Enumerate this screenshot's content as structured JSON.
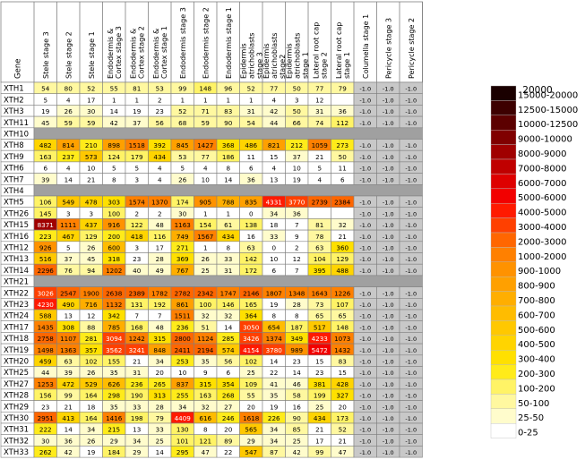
{
  "chart_data": {
    "type": "heatmap",
    "gene_header": "Gene",
    "columns": [
      "Stele stage 3",
      "Stele stage 2",
      "Stele stage 1",
      "Endodermis & Cortex stage 3",
      "Endodermis & Cortex stage 2",
      "Endodermis & Cortex stage 1",
      "Endodermis stage 3",
      "Endodermis stage 2",
      "Endodermis stage 1",
      "Epidermis atrichoblasts stage 3",
      "Epidermis atrichoblasts stage2",
      "Epidermis atrichoblasts stage 1",
      "Lateral root cap stage 2",
      "Lateral root cap stage 1",
      "Columella stage 1",
      "Pericycle stage 3",
      "Pericycle stage 2"
    ],
    "rows": [
      {
        "gene": "XTH1",
        "values": [
          "54",
          "80",
          "52",
          "55",
          "81",
          "53",
          "99",
          "148",
          "96",
          "52",
          "77",
          "50",
          "77",
          "79",
          "-1.0",
          "-1.0",
          "-1.0"
        ]
      },
      {
        "gene": "XTH2",
        "values": [
          "5",
          "4",
          "17",
          "1",
          "1",
          "2",
          "1",
          "1",
          "1",
          "1",
          "4",
          "3",
          "12",
          "",
          "-1.0",
          "-1.0",
          "-1.0"
        ]
      },
      {
        "gene": "XTH3",
        "values": [
          "19",
          "26",
          "30",
          "14",
          "19",
          "23",
          "52",
          "71",
          "83",
          "31",
          "42",
          "50",
          "31",
          "36",
          "-1.0",
          "-1.0",
          "-1.0"
        ]
      },
      {
        "gene": "XTH11",
        "values": [
          "45",
          "59",
          "59",
          "42",
          "37",
          "56",
          "68",
          "59",
          "90",
          "54",
          "44",
          "66",
          "74",
          "112",
          "-1.0",
          "-1.0",
          "-1.0"
        ]
      },
      {
        "gene": "XTH10",
        "values": []
      },
      {
        "gene": "XTH8",
        "values": [
          "482",
          "814",
          "210",
          "898",
          "1518",
          "392",
          "845",
          "1427",
          "368",
          "486",
          "821",
          "212",
          "1059",
          "273",
          "-1.0",
          "-1.0",
          "-1.0"
        ]
      },
      {
        "gene": "XTH9",
        "values": [
          "163",
          "237",
          "573",
          "124",
          "179",
          "434",
          "53",
          "77",
          "186",
          "11",
          "15",
          "37",
          "21",
          "50",
          "-1.0",
          "-1.0",
          "-1.0"
        ]
      },
      {
        "gene": "XTH6",
        "values": [
          "6",
          "4",
          "10",
          "5",
          "5",
          "4",
          "5",
          "4",
          "8",
          "6",
          "4",
          "10",
          "5",
          "11",
          "-1.0",
          "-1.0",
          "-1.0"
        ]
      },
      {
        "gene": "XTH7",
        "values": [
          "39",
          "14",
          "21",
          "8",
          "3",
          "4",
          "26",
          "10",
          "14",
          "36",
          "13",
          "19",
          "4",
          "6",
          "-1.0",
          "-1.0",
          "-1.0"
        ]
      },
      {
        "gene": "XTH4",
        "values": []
      },
      {
        "gene": "XTH5",
        "values": [
          "106",
          "549",
          "478",
          "303",
          "1574",
          "1370",
          "174",
          "905",
          "788",
          "835",
          "4331",
          "3770",
          "2739",
          "2384",
          "-1.0",
          "-1.0",
          "-1.0"
        ]
      },
      {
        "gene": "XTH26",
        "values": [
          "145",
          "3",
          "3",
          "100",
          "2",
          "2",
          "30",
          "1",
          "1",
          "0",
          "34",
          "36",
          "",
          "",
          "-1.0",
          "-1.0",
          "-1.0"
        ]
      },
      {
        "gene": "XTH15",
        "values": [
          "8371",
          "1111",
          "437",
          "916",
          "122",
          "48",
          "1163",
          "154",
          "61",
          "138",
          "18",
          "7",
          "81",
          "32",
          "-1.0",
          "-1.0",
          "-1.0"
        ]
      },
      {
        "gene": "XTH16",
        "values": [
          "223",
          "467",
          "129",
          "200",
          "418",
          "116",
          "749",
          "1567",
          "434",
          "16",
          "33",
          "9",
          "78",
          "21",
          "-1.0",
          "-1.0",
          "-1.0"
        ]
      },
      {
        "gene": "XTH12",
        "values": [
          "926",
          "5",
          "26",
          "600",
          "3",
          "17",
          "271",
          "1",
          "8",
          "63",
          "0",
          "2",
          "63",
          "360",
          "-1.0",
          "-1.0",
          "-1.0"
        ]
      },
      {
        "gene": "XTH13",
        "values": [
          "516",
          "37",
          "45",
          "318",
          "23",
          "28",
          "369",
          "26",
          "33",
          "142",
          "10",
          "12",
          "104",
          "129",
          "-1.0",
          "-1.0",
          "-1.0"
        ]
      },
      {
        "gene": "XTH14",
        "values": [
          "2296",
          "76",
          "94",
          "1202",
          "40",
          "49",
          "767",
          "25",
          "31",
          "172",
          "6",
          "7",
          "395",
          "488",
          "-1.0",
          "-1.0",
          "-1.0"
        ]
      },
      {
        "gene": "XTH21",
        "values": []
      },
      {
        "gene": "XTH22",
        "values": [
          "3026",
          "2547",
          "1900",
          "2638",
          "2389",
          "1782",
          "2782",
          "2342",
          "1747",
          "2146",
          "1807",
          "1348",
          "1643",
          "1226",
          "-1.0",
          "-1.0",
          "-1.0"
        ]
      },
      {
        "gene": "XTH23",
        "values": [
          "4230",
          "490",
          "716",
          "1132",
          "131",
          "192",
          "861",
          "100",
          "146",
          "165",
          "19",
          "28",
          "73",
          "107",
          "-1.0",
          "-1.0",
          "-1.0"
        ]
      },
      {
        "gene": "XTH24",
        "values": [
          "588",
          "13",
          "12",
          "342",
          "7",
          "7",
          "1511",
          "32",
          "32",
          "364",
          "8",
          "8",
          "65",
          "65",
          "-1.0",
          "-1.0",
          "-1.0"
        ]
      },
      {
        "gene": "XTH17",
        "values": [
          "1435",
          "308",
          "88",
          "785",
          "168",
          "48",
          "236",
          "51",
          "14",
          "3050",
          "654",
          "187",
          "517",
          "148",
          "-1.0",
          "-1.0",
          "-1.0"
        ]
      },
      {
        "gene": "XTH18",
        "values": [
          "2758",
          "1107",
          "281",
          "3094",
          "1242",
          "315",
          "2800",
          "1124",
          "285",
          "3426",
          "1374",
          "349",
          "4233",
          "1073",
          "-1.0",
          "-1.0",
          "-1.0"
        ]
      },
      {
        "gene": "XTH19",
        "values": [
          "1498",
          "1363",
          "357",
          "3562",
          "3241",
          "848",
          "2411",
          "2194",
          "574",
          "4154",
          "3780",
          "989",
          "5472",
          "1432",
          "-1.0",
          "-1.0",
          "-1.0"
        ]
      },
      {
        "gene": "XTH20",
        "values": [
          "459",
          "63",
          "102",
          "155",
          "21",
          "34",
          "253",
          "35",
          "56",
          "102",
          "14",
          "23",
          "15",
          "83",
          "-1.0",
          "-1.0",
          "-1.0"
        ]
      },
      {
        "gene": "XTH25",
        "values": [
          "44",
          "39",
          "26",
          "35",
          "31",
          "20",
          "10",
          "9",
          "6",
          "25",
          "22",
          "14",
          "23",
          "15",
          "-1.0",
          "-1.0",
          "-1.0"
        ]
      },
      {
        "gene": "XTH27",
        "values": [
          "1253",
          "472",
          "529",
          "626",
          "236",
          "265",
          "837",
          "315",
          "354",
          "109",
          "41",
          "46",
          "381",
          "428",
          "-1.0",
          "-1.0",
          "-1.0"
        ]
      },
      {
        "gene": "XTH28",
        "values": [
          "156",
          "99",
          "164",
          "298",
          "190",
          "313",
          "255",
          "163",
          "268",
          "55",
          "35",
          "58",
          "199",
          "327",
          "-1.0",
          "-1.0",
          "-1.0"
        ]
      },
      {
        "gene": "XTH29",
        "values": [
          "23",
          "21",
          "18",
          "35",
          "33",
          "28",
          "34",
          "32",
          "27",
          "20",
          "19",
          "16",
          "25",
          "20",
          "-1.0",
          "-1.0",
          "-1.0"
        ]
      },
      {
        "gene": "XTH30",
        "values": [
          "2951",
          "413",
          "164",
          "1416",
          "198",
          "79",
          "4409",
          "616",
          "246",
          "1618",
          "226",
          "90",
          "434",
          "173",
          "-1.0",
          "-1.0",
          "-1.0"
        ]
      },
      {
        "gene": "XTH31",
        "values": [
          "222",
          "14",
          "34",
          "215",
          "13",
          "33",
          "130",
          "8",
          "20",
          "565",
          "34",
          "85",
          "21",
          "52",
          "-1.0",
          "-1.0",
          "-1.0"
        ]
      },
      {
        "gene": "XTH32",
        "values": [
          "30",
          "36",
          "26",
          "29",
          "34",
          "25",
          "101",
          "121",
          "89",
          "29",
          "34",
          "25",
          "17",
          "21",
          "-1.0",
          "-1.0",
          "-1.0"
        ]
      },
      {
        "gene": "XTH33",
        "values": [
          "262",
          "42",
          "19",
          "184",
          "29",
          "14",
          "295",
          "47",
          "22",
          "547",
          "87",
          "42",
          "99",
          "47",
          "-1.0",
          "-1.0",
          "-1.0"
        ]
      }
    ],
    "legend": {
      "title": "20000",
      "bins": [
        {
          "label": "15000-20000",
          "color": "#1a0000"
        },
        {
          "label": "12500-15000",
          "color": "#3d0000"
        },
        {
          "label": "10000-12500",
          "color": "#5c0000"
        },
        {
          "label": "9000-10000",
          "color": "#800000"
        },
        {
          "label": "8000-9000",
          "color": "#a00000"
        },
        {
          "label": "7000-8000",
          "color": "#c00000"
        },
        {
          "label": "6000-7000",
          "color": "#de0000"
        },
        {
          "label": "5000-6000",
          "color": "#f20000"
        },
        {
          "label": "4000-5000",
          "color": "#ff1a00"
        },
        {
          "label": "3000-4000",
          "color": "#ff4000"
        },
        {
          "label": "2000-3000",
          "color": "#ff6600"
        },
        {
          "label": "1000-2000",
          "color": "#ff8000"
        },
        {
          "label": "900-1000",
          "color": "#ff9200"
        },
        {
          "label": "800-900",
          "color": "#ffa000"
        },
        {
          "label": "700-800",
          "color": "#ffae00"
        },
        {
          "label": "600-700",
          "color": "#ffbc00"
        },
        {
          "label": "500-600",
          "color": "#ffc800"
        },
        {
          "label": "400-500",
          "color": "#ffd400"
        },
        {
          "label": "300-400",
          "color": "#ffe000"
        },
        {
          "label": "200-300",
          "color": "#ffeb1a"
        },
        {
          "label": "100-200",
          "color": "#fff366"
        },
        {
          "label": "50-100",
          "color": "#fff8a0"
        },
        {
          "label": "25-50",
          "color": "#fffccc"
        },
        {
          "label": "0-25",
          "color": "#ffffff"
        }
      ]
    },
    "colors": {
      "gap_row": "#a0a0a0",
      "na_cell": "#c8c8c8",
      "grid": "#808080",
      "text": "#000000"
    }
  }
}
